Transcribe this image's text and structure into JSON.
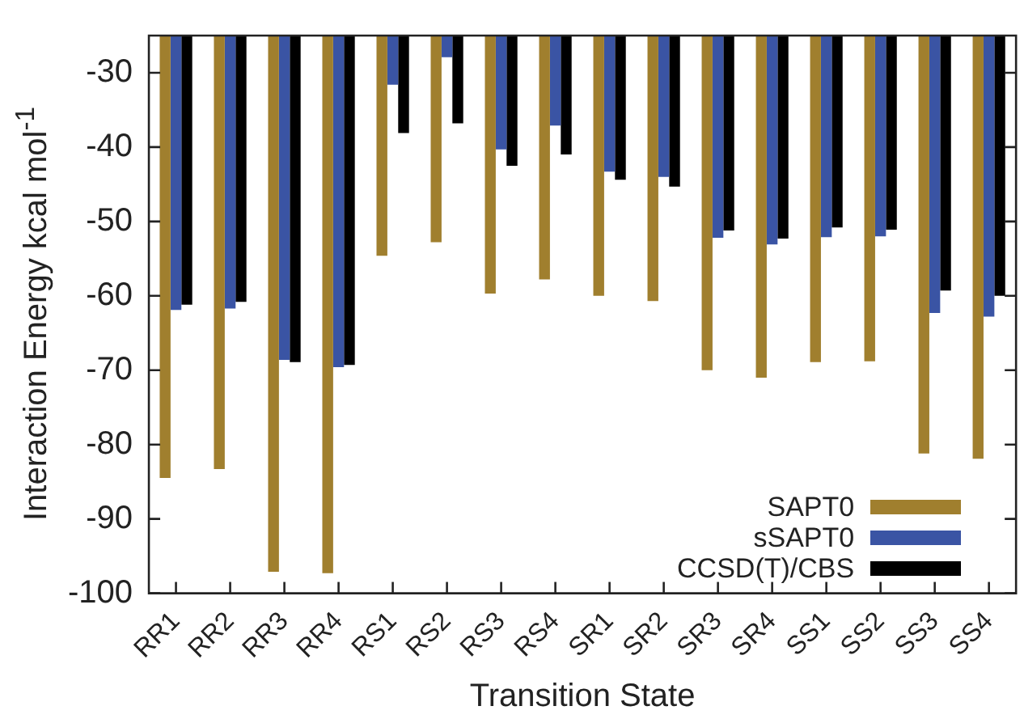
{
  "chart_data": {
    "type": "bar",
    "xlabel": "Transition State",
    "ylabel": "Interaction Energy kcal mol$^{-1}$",
    "categories": [
      "RR1",
      "RR2",
      "RR3",
      "RR4",
      "RS1",
      "RS2",
      "RS3",
      "RS4",
      "SR1",
      "SR2",
      "SR3",
      "SR4",
      "SS1",
      "SS2",
      "SS3",
      "SS4"
    ],
    "series": [
      {
        "name": "SAPT0",
        "color": "#a07f2e",
        "values": [
          -84.5,
          -83.3,
          -97.1,
          -97.3,
          -54.6,
          -52.8,
          -59.7,
          -57.8,
          -60.0,
          -60.7,
          -70.0,
          -71.0,
          -68.9,
          -68.8,
          -81.2,
          -81.9
        ]
      },
      {
        "name": "sSAPT0",
        "color": "#3a54a4",
        "values": [
          -61.9,
          -61.7,
          -68.6,
          -69.6,
          -31.6,
          -27.9,
          -40.3,
          -37.1,
          -43.3,
          -44.0,
          -52.2,
          -53.1,
          -52.1,
          -52.0,
          -62.3,
          -62.8
        ]
      },
      {
        "name": "CCSD(T)/CBS",
        "color": "#000000",
        "values": [
          -61.2,
          -60.8,
          -68.9,
          -69.3,
          -38.1,
          -36.8,
          -42.5,
          -41.0,
          -44.4,
          -45.3,
          -51.2,
          -52.3,
          -50.8,
          -51.1,
          -59.3,
          -60.0
        ]
      }
    ],
    "ylim": [
      -100,
      -25
    ],
    "yticks": [
      -100,
      -90,
      -80,
      -70,
      -60,
      -50,
      -40,
      -30
    ],
    "grid": false,
    "legend": "bottom right"
  }
}
